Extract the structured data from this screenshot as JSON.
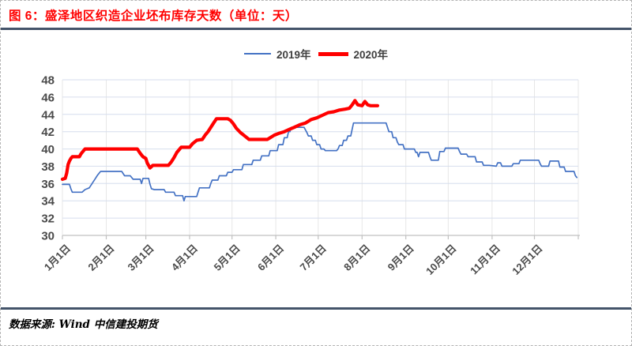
{
  "header": {
    "title": "图 6：盛泽地区织造企业坯布库存天数（单位：天）",
    "title_color": "#FF0000"
  },
  "footer": {
    "source": "数据来源: Wind  中信建投期货"
  },
  "style_colors": {
    "rule": "#44546A",
    "grid_horizontal": "#D6DEED",
    "grid_vertical": "#E7E7E7",
    "axis": "#C0C0C0",
    "tick_label": "#4a4a4a"
  },
  "chart_data": {
    "type": "line",
    "title": "盛泽地区织造企业坯布库存天数",
    "unit": "天",
    "ylabel": "",
    "xlabel": "",
    "ylim": [
      30,
      48
    ],
    "ytick_step": 2,
    "grid": true,
    "legend_position": "top-center",
    "x_unit": "day-of-year",
    "x_tick_labels": [
      "1月1日",
      "2月1日",
      "3月1日",
      "4月1日",
      "5月1日",
      "6月1日",
      "7月1日",
      "8月1日",
      "9月1日",
      "10月1日",
      "11月1日",
      "12月1日"
    ],
    "month_start_days": [
      1,
      32,
      60,
      91,
      121,
      152,
      182,
      213,
      244,
      274,
      305,
      335,
      366
    ],
    "series": [
      {
        "name": "2019年",
        "color": "#4472C4",
        "stroke_width": 1.7,
        "points": [
          [
            1,
            35.9
          ],
          [
            6,
            35.9
          ],
          [
            7,
            35.4
          ],
          [
            8,
            35.0
          ],
          [
            15,
            35.0
          ],
          [
            17,
            35.3
          ],
          [
            20,
            35.5
          ],
          [
            22,
            36.0
          ],
          [
            24,
            36.5
          ],
          [
            26,
            37.0
          ],
          [
            28,
            37.4
          ],
          [
            43,
            37.4
          ],
          [
            45,
            36.9
          ],
          [
            49,
            36.9
          ],
          [
            51,
            36.5
          ],
          [
            56,
            36.5
          ],
          [
            57,
            36.0
          ],
          [
            58,
            36.6
          ],
          [
            62,
            36.6
          ],
          [
            63,
            35.9
          ],
          [
            64,
            35.4
          ],
          [
            66,
            35.3
          ],
          [
            73,
            35.3
          ],
          [
            74,
            35.0
          ],
          [
            80,
            35.0
          ],
          [
            81,
            34.6
          ],
          [
            86,
            34.6
          ],
          [
            87,
            34.0
          ],
          [
            88,
            34.5
          ],
          [
            96,
            34.5
          ],
          [
            97,
            35.0
          ],
          [
            98,
            35.5
          ],
          [
            105,
            35.5
          ],
          [
            106,
            36.0
          ],
          [
            107,
            36.4
          ],
          [
            111,
            36.4
          ],
          [
            112,
            36.9
          ],
          [
            117,
            36.9
          ],
          [
            118,
            37.3
          ],
          [
            121,
            37.3
          ],
          [
            122,
            37.6
          ],
          [
            128,
            37.6
          ],
          [
            129,
            38.2
          ],
          [
            135,
            38.2
          ],
          [
            136,
            38.7
          ],
          [
            141,
            38.7
          ],
          [
            142,
            39.2
          ],
          [
            147,
            39.2
          ],
          [
            148,
            39.8
          ],
          [
            153,
            39.8
          ],
          [
            154,
            40.5
          ],
          [
            157,
            40.5
          ],
          [
            158,
            41.3
          ],
          [
            160,
            41.3
          ],
          [
            161,
            42.0
          ],
          [
            162,
            42.0
          ],
          [
            163,
            42.5
          ],
          [
            172,
            42.5
          ],
          [
            173,
            42.2
          ],
          [
            174,
            41.9
          ],
          [
            175,
            41.5
          ],
          [
            177,
            41.5
          ],
          [
            178,
            41.0
          ],
          [
            180,
            41.0
          ],
          [
            181,
            40.5
          ],
          [
            183,
            40.5
          ],
          [
            184,
            40.0
          ],
          [
            186,
            40.0
          ],
          [
            187,
            39.8
          ],
          [
            195,
            39.8
          ],
          [
            196,
            40.0
          ],
          [
            197,
            40.4
          ],
          [
            199,
            40.4
          ],
          [
            200,
            41.0
          ],
          [
            202,
            41.0
          ],
          [
            203,
            41.5
          ],
          [
            205,
            41.5
          ],
          [
            206,
            42.3
          ],
          [
            207,
            43.0
          ],
          [
            230,
            43.0
          ],
          [
            231,
            42.5
          ],
          [
            232,
            42.0
          ],
          [
            234,
            42.0
          ],
          [
            235,
            41.3
          ],
          [
            237,
            41.3
          ],
          [
            238,
            40.8
          ],
          [
            239,
            40.5
          ],
          [
            242,
            40.5
          ],
          [
            243,
            40.0
          ],
          [
            250,
            40.0
          ],
          [
            251,
            39.6
          ],
          [
            252,
            39.6
          ],
          [
            253,
            39.1
          ],
          [
            254,
            39.6
          ],
          [
            260,
            39.6
          ],
          [
            261,
            39.1
          ],
          [
            262,
            38.7
          ],
          [
            267,
            38.7
          ],
          [
            268,
            39.7
          ],
          [
            271,
            39.7
          ],
          [
            272,
            40.1
          ],
          [
            281,
            40.1
          ],
          [
            282,
            39.7
          ],
          [
            283,
            39.4
          ],
          [
            287,
            39.4
          ],
          [
            288,
            39.1
          ],
          [
            293,
            39.1
          ],
          [
            294,
            38.5
          ],
          [
            298,
            38.5
          ],
          [
            299,
            38.1
          ],
          [
            303,
            38.1
          ],
          [
            308,
            38.0
          ],
          [
            309,
            38.4
          ],
          [
            311,
            38.4
          ],
          [
            312,
            38.0
          ],
          [
            319,
            38.0
          ],
          [
            320,
            38.3
          ],
          [
            324,
            38.3
          ],
          [
            325,
            38.7
          ],
          [
            338,
            38.7
          ],
          [
            339,
            38.3
          ],
          [
            340,
            38.0
          ],
          [
            345,
            38.0
          ],
          [
            346,
            38.6
          ],
          [
            352,
            38.6
          ],
          [
            353,
            37.9
          ],
          [
            356,
            37.9
          ],
          [
            357,
            37.4
          ],
          [
            363,
            37.4
          ],
          [
            364,
            36.9
          ],
          [
            365,
            36.7
          ]
        ]
      },
      {
        "name": "2020年",
        "color": "#FF0000",
        "stroke_width": 4.2,
        "points": [
          [
            1,
            36.5
          ],
          [
            3,
            36.6
          ],
          [
            4,
            37.2
          ],
          [
            5,
            38.2
          ],
          [
            6,
            38.6
          ],
          [
            7,
            38.9
          ],
          [
            8,
            39.1
          ],
          [
            13,
            39.1
          ],
          [
            14,
            39.4
          ],
          [
            15,
            39.6
          ],
          [
            16,
            39.8
          ],
          [
            17,
            40.0
          ],
          [
            54,
            40.0
          ],
          [
            56,
            39.5
          ],
          [
            58,
            39.1
          ],
          [
            60,
            38.9
          ],
          [
            61,
            38.4
          ],
          [
            63,
            37.8
          ],
          [
            65,
            38.1
          ],
          [
            76,
            38.1
          ],
          [
            78,
            38.5
          ],
          [
            80,
            39.0
          ],
          [
            82,
            39.6
          ],
          [
            84,
            40.0
          ],
          [
            85,
            40.2
          ],
          [
            91,
            40.2
          ],
          [
            93,
            40.6
          ],
          [
            96,
            41.0
          ],
          [
            100,
            41.1
          ],
          [
            102,
            41.6
          ],
          [
            104,
            42.0
          ],
          [
            106,
            42.5
          ],
          [
            108,
            43.0
          ],
          [
            110,
            43.5
          ],
          [
            118,
            43.5
          ],
          [
            120,
            43.3
          ],
          [
            122,
            42.9
          ],
          [
            124,
            42.4
          ],
          [
            127,
            41.9
          ],
          [
            130,
            41.5
          ],
          [
            133,
            41.1
          ],
          [
            146,
            41.1
          ],
          [
            148,
            41.3
          ],
          [
            151,
            41.6
          ],
          [
            154,
            41.8
          ],
          [
            158,
            42.0
          ],
          [
            162,
            42.3
          ],
          [
            165,
            42.5
          ],
          [
            169,
            42.8
          ],
          [
            173,
            43.0
          ],
          [
            177,
            43.4
          ],
          [
            181,
            43.6
          ],
          [
            185,
            43.9
          ],
          [
            189,
            44.2
          ],
          [
            193,
            44.3
          ],
          [
            197,
            44.5
          ],
          [
            201,
            44.6
          ],
          [
            204,
            44.7
          ],
          [
            206,
            45.1
          ],
          [
            208,
            45.6
          ],
          [
            210,
            45.1
          ],
          [
            213,
            45.0
          ],
          [
            215,
            45.5
          ],
          [
            217,
            45.1
          ],
          [
            219,
            45.0
          ],
          [
            224,
            45.0
          ]
        ]
      }
    ]
  }
}
